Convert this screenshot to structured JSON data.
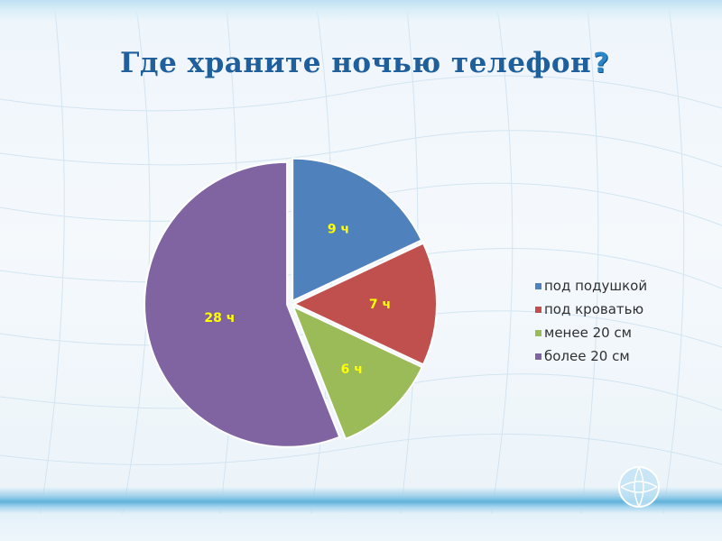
{
  "title": "Где храните ночью телефон",
  "title_icon": "question-mark-icon",
  "chart_data": {
    "type": "pie",
    "title": "Где храните ночью телефон?",
    "unit": "ч",
    "categories": [
      "под подушкой",
      "под кроватью",
      "менее 20 см",
      "более 20 см"
    ],
    "values": [
      9,
      7,
      6,
      28
    ],
    "data_labels": [
      "9 ч",
      "7 ч",
      "6 ч",
      "28 ч"
    ],
    "colors": [
      "#4f81bd",
      "#c0504d",
      "#9bbb59",
      "#8064a2"
    ],
    "start_angle_deg": 0,
    "direction": "clockwise",
    "legend_position": "right",
    "exploded": true,
    "label_color": "#ffff00"
  },
  "colors": {
    "title": "#1f5f9c",
    "accent": "#2a86c9"
  },
  "logo": {
    "icon": "globe-logo-icon"
  }
}
